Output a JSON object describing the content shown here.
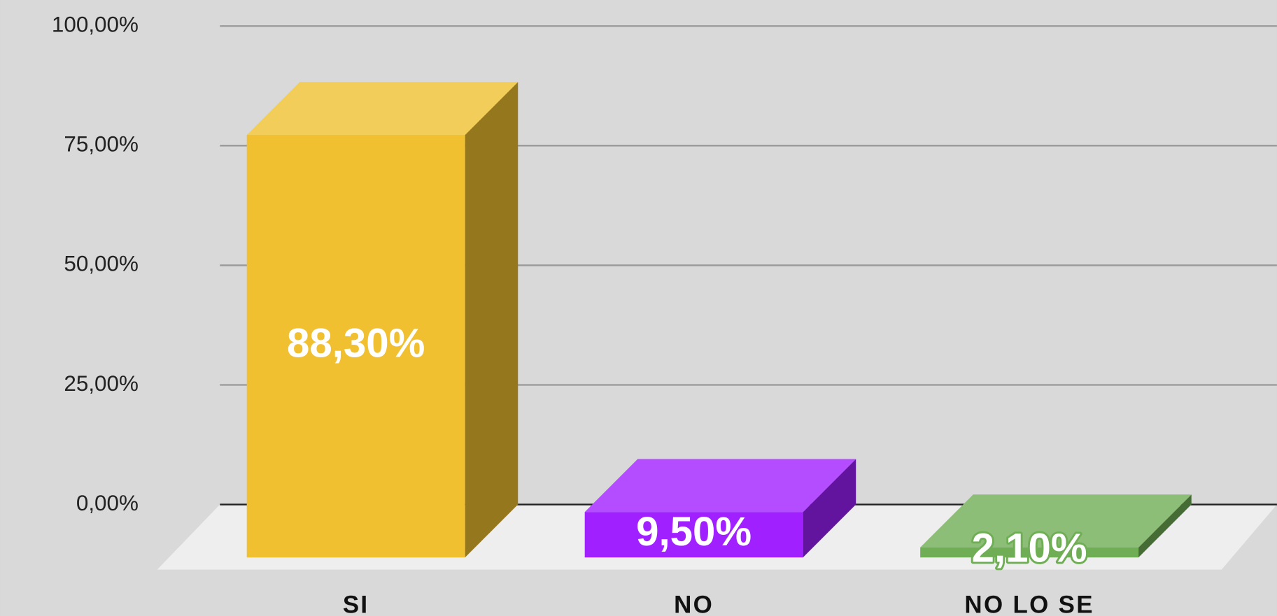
{
  "chart_data": {
    "type": "bar3d",
    "categories": [
      "SI",
      "NO",
      "NO LO SE"
    ],
    "values": [
      88.3,
      9.5,
      2.1
    ],
    "value_labels": [
      "88,30%",
      "9,50%",
      "2,10%"
    ],
    "colors": [
      "#f0c030",
      "#a020ff",
      "#6fae55"
    ],
    "ylim": [
      0,
      100
    ],
    "yticks": [
      {
        "value": 0,
        "label": "0,00%"
      },
      {
        "value": 25,
        "label": "25,00%"
      },
      {
        "value": 50,
        "label": "50,00%"
      },
      {
        "value": 75,
        "label": "75,00%"
      },
      {
        "value": 100,
        "label": "100,00%"
      }
    ],
    "grid": true
  }
}
